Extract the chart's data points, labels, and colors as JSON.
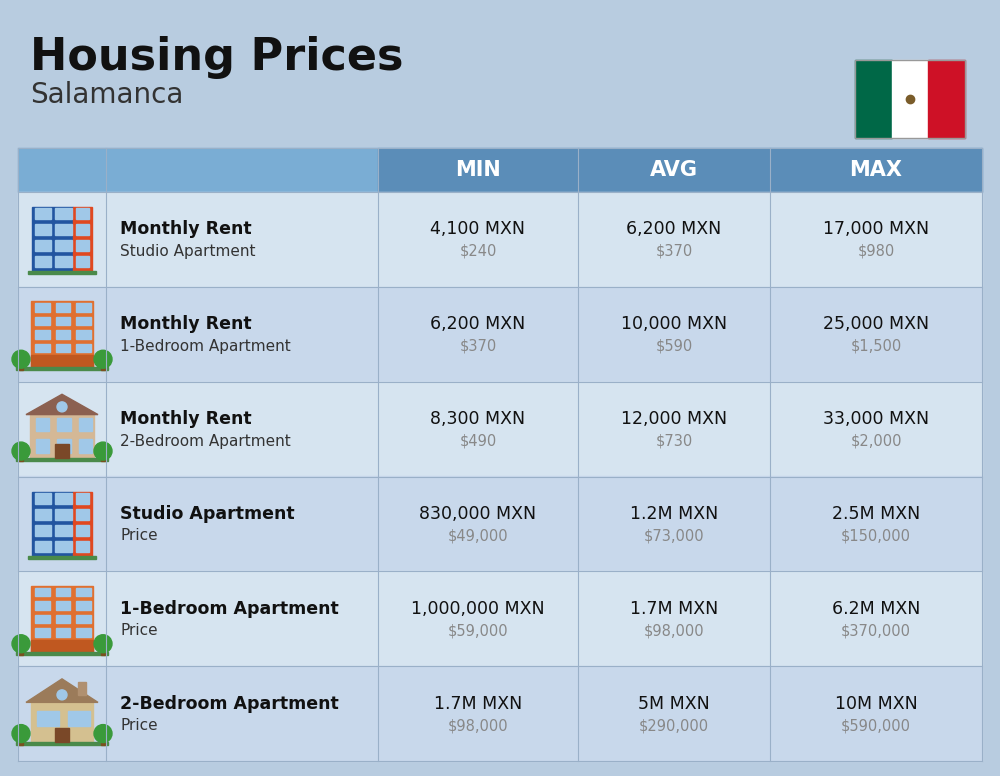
{
  "title": "Housing Prices",
  "subtitle": "Salamanca",
  "bg_color": "#b8cce0",
  "header_bg": "#5b8db8",
  "header_text_color": "#ffffff",
  "header_labels": [
    "MIN",
    "AVG",
    "MAX"
  ],
  "row_colors": [
    "#d6e4f0",
    "#c8d8eb"
  ],
  "rows": [
    {
      "icon": "blue_apt",
      "label_bold": "Monthly Rent",
      "label_light": "Studio Apartment",
      "min_main": "4,100 MXN",
      "min_sub": "$240",
      "avg_main": "6,200 MXN",
      "avg_sub": "$370",
      "max_main": "17,000 MXN",
      "max_sub": "$980"
    },
    {
      "icon": "orange_apt",
      "label_bold": "Monthly Rent",
      "label_light": "1-Bedroom Apartment",
      "min_main": "6,200 MXN",
      "min_sub": "$370",
      "avg_main": "10,000 MXN",
      "avg_sub": "$590",
      "max_main": "25,000 MXN",
      "max_sub": "$1,500"
    },
    {
      "icon": "tan_apt",
      "label_bold": "Monthly Rent",
      "label_light": "2-Bedroom Apartment",
      "min_main": "8,300 MXN",
      "min_sub": "$490",
      "avg_main": "12,000 MXN",
      "avg_sub": "$730",
      "max_main": "33,000 MXN",
      "max_sub": "$2,000"
    },
    {
      "icon": "blue_apt",
      "label_bold": "Studio Apartment",
      "label_light": "Price",
      "min_main": "830,000 MXN",
      "min_sub": "$49,000",
      "avg_main": "1.2M MXN",
      "avg_sub": "$73,000",
      "max_main": "2.5M MXN",
      "max_sub": "$150,000"
    },
    {
      "icon": "orange_apt",
      "label_bold": "1-Bedroom Apartment",
      "label_light": "Price",
      "min_main": "1,000,000 MXN",
      "min_sub": "$59,000",
      "avg_main": "1.7M MXN",
      "avg_sub": "$98,000",
      "max_main": "6.2M MXN",
      "max_sub": "$370,000"
    },
    {
      "icon": "house_apt",
      "label_bold": "2-Bedroom Apartment",
      "label_light": "Price",
      "min_main": "1.7M MXN",
      "min_sub": "$98,000",
      "avg_main": "5M MXN",
      "avg_sub": "$290,000",
      "max_main": "10M MXN",
      "max_sub": "$590,000"
    }
  ]
}
